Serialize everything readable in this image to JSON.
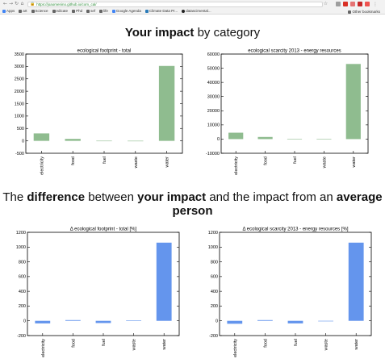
{
  "browser": {
    "url": "https://joaomenino.github.io/com_cal/",
    "bookmarks": [
      "Apps",
      "art",
      "Science",
      "edicate",
      "Phd",
      "sef",
      "life",
      "Google Agenda",
      "Climate Data Pr...",
      "datascimental..."
    ],
    "other_bookmarks": "Other bookmarks",
    "colors": {
      "lock": "#2e8b3a",
      "ext": [
        "#9e9e9e",
        "#d93025",
        "#e57373",
        "#c62828",
        "#ef5350"
      ]
    }
  },
  "headings": {
    "impact": {
      "bold": "Your impact",
      "rest": " by category"
    },
    "difference": {
      "p1": "The ",
      "b1": "difference",
      "p2": " between ",
      "b2": "your impact",
      "p3": " and the impact from an ",
      "b3": "average",
      "line2": "person"
    }
  },
  "chart_data": [
    {
      "id": "footprint-total",
      "type": "bar",
      "title": "ecological footprint - total",
      "categories": [
        "electricity",
        "food",
        "fuel",
        "waste",
        "water"
      ],
      "values": [
        300,
        80,
        5,
        3,
        3020
      ],
      "ylim": [
        -500,
        3500
      ],
      "yticks": [
        -500,
        0,
        500,
        1000,
        1500,
        2000,
        2500,
        3000,
        3500
      ],
      "color": "#8fbc8f",
      "grid": false
    },
    {
      "id": "scarcity-energy",
      "type": "bar",
      "title": "ecological scarcity 2013 - energy resources",
      "categories": [
        "electricity",
        "food",
        "fuel",
        "waste",
        "water"
      ],
      "values": [
        4500,
        1500,
        150,
        50,
        53000
      ],
      "ylim": [
        -10000,
        60000
      ],
      "yticks": [
        -10000,
        0,
        10000,
        20000,
        30000,
        40000,
        50000,
        60000
      ],
      "color": "#8fbc8f",
      "grid": false
    },
    {
      "id": "footprint-diff",
      "type": "bar",
      "title": "Δ ecological footprint - total [%]",
      "categories": [
        "electricity",
        "food",
        "fuel",
        "waste",
        "water"
      ],
      "values": [
        -35,
        10,
        -30,
        5,
        1060
      ],
      "ylim": [
        -200,
        1200
      ],
      "yticks": [
        -200,
        0,
        200,
        400,
        600,
        800,
        1000,
        1200
      ],
      "color": "#6495ed",
      "grid": false
    },
    {
      "id": "scarcity-diff",
      "type": "bar",
      "title": "Δ ecological scarcity 2013 - energy resources [%]",
      "categories": [
        "electricity",
        "food",
        "fuel",
        "waste",
        "water"
      ],
      "values": [
        -40,
        10,
        -35,
        0,
        1060
      ],
      "ylim": [
        -200,
        1200
      ],
      "yticks": [
        -200,
        0,
        200,
        400,
        600,
        800,
        1000,
        1200
      ],
      "color": "#6495ed",
      "grid": false
    }
  ]
}
